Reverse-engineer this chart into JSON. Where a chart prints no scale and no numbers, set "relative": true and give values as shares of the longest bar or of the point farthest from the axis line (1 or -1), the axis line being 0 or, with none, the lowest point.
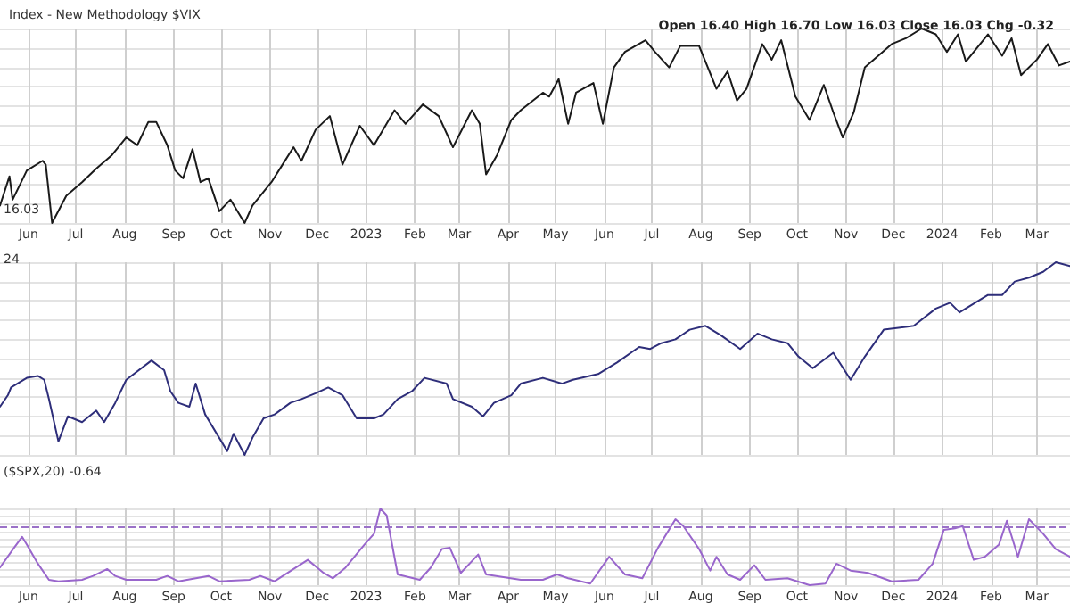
{
  "chart_data": [
    {
      "type": "line",
      "title": "Index - New Methodology $VIX",
      "subtitle": "Open 16.40 High 16.70 Low 16.03 Close 16.03 Chg -0.32",
      "annotations": [
        "16.03"
      ],
      "relative": true,
      "grid": true,
      "tick_labels": "x",
      "xlim": [
        "2022-05-14",
        "2024-03-22"
      ],
      "xticks": [
        {
          "value": "2022-06-01",
          "label": "Jun"
        },
        {
          "value": "2022-07-01",
          "label": "Jul"
        },
        {
          "value": "2022-08-01",
          "label": "Aug"
        },
        {
          "value": "2022-09-01",
          "label": "Sep"
        },
        {
          "value": "2022-10-01",
          "label": "Oct"
        },
        {
          "value": "2022-11-01",
          "label": "Nov"
        },
        {
          "value": "2022-12-01",
          "label": "Dec"
        },
        {
          "value": "2023-01-01",
          "label": "2023"
        },
        {
          "value": "2023-02-01",
          "label": "Feb"
        },
        {
          "value": "2023-03-01",
          "label": "Mar"
        },
        {
          "value": "2023-04-01",
          "label": "Apr"
        },
        {
          "value": "2023-05-01",
          "label": "May"
        },
        {
          "value": "2023-06-01",
          "label": "Jun"
        },
        {
          "value": "2023-07-01",
          "label": "Jul"
        },
        {
          "value": "2023-08-01",
          "label": "Aug"
        },
        {
          "value": "2023-09-01",
          "label": "Sep"
        },
        {
          "value": "2023-10-01",
          "label": "Oct"
        },
        {
          "value": "2023-11-01",
          "label": "Nov"
        },
        {
          "value": "2023-12-01",
          "label": "Dec"
        },
        {
          "value": "2024-01-01",
          "label": "2024"
        },
        {
          "value": "2024-02-01",
          "label": "Feb"
        },
        {
          "value": "2024-03-01",
          "label": "Mar"
        }
      ],
      "x": [
        "2022-05-14",
        "2022-05-20",
        "2022-05-22",
        "2022-05-31",
        "2022-06-10",
        "2022-06-12",
        "2022-06-16",
        "2022-06-25",
        "2022-07-05",
        "2022-07-14",
        "2022-07-24",
        "2022-08-02",
        "2022-08-09",
        "2022-08-16",
        "2022-08-21",
        "2022-08-28",
        "2022-09-02",
        "2022-09-07",
        "2022-09-13",
        "2022-09-18",
        "2022-09-23",
        "2022-09-30",
        "2022-10-07",
        "2022-10-16",
        "2022-10-21",
        "2022-11-02",
        "2022-11-09",
        "2022-11-16",
        "2022-11-21",
        "2022-11-30",
        "2022-12-09",
        "2022-12-17",
        "2022-12-28",
        "2023-01-06",
        "2023-01-19",
        "2023-01-26",
        "2023-02-06",
        "2023-02-16",
        "2023-02-25",
        "2023-03-09",
        "2023-03-14",
        "2023-03-18",
        "2023-03-25",
        "2023-04-03",
        "2023-04-09",
        "2023-04-23",
        "2023-04-27",
        "2023-05-03",
        "2023-05-09",
        "2023-05-14",
        "2023-05-25",
        "2023-05-31",
        "2023-06-07",
        "2023-06-14",
        "2023-06-27",
        "2023-07-03",
        "2023-07-12",
        "2023-07-19",
        "2023-07-31",
        "2023-08-11",
        "2023-08-18",
        "2023-08-24",
        "2023-08-30",
        "2023-09-09",
        "2023-09-15",
        "2023-09-21",
        "2023-09-30",
        "2023-10-09",
        "2023-10-18",
        "2023-10-24",
        "2023-10-30",
        "2023-11-06",
        "2023-11-13",
        "2023-11-30",
        "2023-12-09",
        "2023-12-19",
        "2023-12-28",
        "2024-01-04",
        "2024-01-11",
        "2024-01-16",
        "2024-01-30",
        "2024-02-08",
        "2024-02-14",
        "2024-02-20",
        "2024-03-01",
        "2024-03-08",
        "2024-03-15",
        "2024-03-22"
      ],
      "series": [
        {
          "color": "#1a1a1a",
          "values": [
            0.09,
            0.24,
            0.12,
            0.27,
            0.32,
            0.3,
            0.0,
            0.14,
            0.21,
            0.28,
            0.35,
            0.44,
            0.4,
            0.52,
            0.52,
            0.4,
            0.27,
            0.23,
            0.38,
            0.21,
            0.23,
            0.06,
            0.12,
            0.0,
            0.09,
            0.21,
            0.3,
            0.39,
            0.32,
            0.48,
            0.55,
            0.3,
            0.5,
            0.4,
            0.58,
            0.51,
            0.61,
            0.55,
            0.39,
            0.58,
            0.51,
            0.25,
            0.35,
            0.53,
            0.58,
            0.67,
            0.65,
            0.74,
            0.51,
            0.67,
            0.72,
            0.51,
            0.8,
            0.88,
            0.94,
            0.88,
            0.8,
            0.91,
            0.91,
            0.69,
            0.78,
            0.63,
            0.69,
            0.92,
            0.84,
            0.94,
            0.65,
            0.53,
            0.71,
            0.57,
            0.44,
            0.57,
            0.8,
            0.92,
            0.95,
            1.0,
            0.97,
            0.88,
            0.97,
            0.83,
            0.97,
            0.86,
            0.95,
            0.76,
            0.84,
            0.92,
            0.81,
            0.83
          ]
        }
      ]
    },
    {
      "type": "line",
      "annotations": [
        "24"
      ],
      "relative": true,
      "grid": true,
      "tick_labels": false,
      "xlim": [
        "2022-05-14",
        "2024-03-22"
      ],
      "xticks": [
        {
          "value": "2022-06-01",
          "label": null
        },
        {
          "value": "2022-07-01",
          "label": null
        },
        {
          "value": "2022-08-01",
          "label": null
        },
        {
          "value": "2022-09-01",
          "label": null
        },
        {
          "value": "2022-10-01",
          "label": null
        },
        {
          "value": "2022-11-01",
          "label": null
        },
        {
          "value": "2022-12-01",
          "label": null
        },
        {
          "value": "2023-01-01",
          "label": null
        },
        {
          "value": "2023-02-01",
          "label": null
        },
        {
          "value": "2023-03-01",
          "label": null
        },
        {
          "value": "2023-04-01",
          "label": null
        },
        {
          "value": "2023-05-01",
          "label": null
        },
        {
          "value": "2023-06-01",
          "label": null
        },
        {
          "value": "2023-07-01",
          "label": null
        },
        {
          "value": "2023-08-01",
          "label": null
        },
        {
          "value": "2023-09-01",
          "label": null
        },
        {
          "value": "2023-10-01",
          "label": null
        },
        {
          "value": "2023-11-01",
          "label": null
        },
        {
          "value": "2023-12-01",
          "label": null
        },
        {
          "value": "2024-01-01",
          "label": null
        },
        {
          "value": "2024-02-01",
          "label": null
        },
        {
          "value": "2024-03-01",
          "label": null
        }
      ],
      "x": [
        "2022-05-14",
        "2022-05-19",
        "2022-05-21",
        "2022-05-31",
        "2022-06-07",
        "2022-06-11",
        "2022-06-14",
        "2022-06-20",
        "2022-06-26",
        "2022-07-05",
        "2022-07-14",
        "2022-07-19",
        "2022-07-26",
        "2022-08-02",
        "2022-08-18",
        "2022-08-26",
        "2022-08-30",
        "2022-09-04",
        "2022-09-11",
        "2022-09-15",
        "2022-09-21",
        "2022-10-05",
        "2022-10-09",
        "2022-10-16",
        "2022-10-21",
        "2022-10-28",
        "2022-11-04",
        "2022-11-14",
        "2022-11-21",
        "2022-11-30",
        "2022-12-08",
        "2022-12-17",
        "2022-12-26",
        "2023-01-06",
        "2023-01-12",
        "2023-01-21",
        "2023-01-30",
        "2023-02-07",
        "2023-02-21",
        "2023-02-25",
        "2023-03-09",
        "2023-03-16",
        "2023-03-23",
        "2023-04-03",
        "2023-04-09",
        "2023-04-23",
        "2023-05-05",
        "2023-05-12",
        "2023-05-28",
        "2023-06-09",
        "2023-06-23",
        "2023-06-30",
        "2023-07-07",
        "2023-07-16",
        "2023-07-25",
        "2023-08-04",
        "2023-08-14",
        "2023-08-26",
        "2023-09-06",
        "2023-09-15",
        "2023-09-25",
        "2023-10-02",
        "2023-10-11",
        "2023-10-24",
        "2023-11-04",
        "2023-11-13",
        "2023-11-25",
        "2023-12-14",
        "2023-12-28",
        "2024-01-06",
        "2024-01-12",
        "2024-01-30",
        "2024-02-08",
        "2024-02-16",
        "2024-02-25",
        "2024-03-05",
        "2024-03-13",
        "2024-03-22"
      ],
      "series": [
        {
          "color": "#2e2e7a",
          "values": [
            0.25,
            0.31,
            0.35,
            0.4,
            0.41,
            0.39,
            0.29,
            0.07,
            0.2,
            0.17,
            0.23,
            0.17,
            0.27,
            0.39,
            0.49,
            0.44,
            0.33,
            0.27,
            0.25,
            0.37,
            0.21,
            0.02,
            0.11,
            0.0,
            0.09,
            0.19,
            0.21,
            0.27,
            0.29,
            0.32,
            0.35,
            0.31,
            0.19,
            0.19,
            0.21,
            0.29,
            0.33,
            0.4,
            0.37,
            0.29,
            0.25,
            0.2,
            0.27,
            0.31,
            0.37,
            0.4,
            0.37,
            0.39,
            0.42,
            0.48,
            0.56,
            0.55,
            0.58,
            0.6,
            0.65,
            0.67,
            0.62,
            0.55,
            0.63,
            0.6,
            0.58,
            0.51,
            0.45,
            0.53,
            0.39,
            0.51,
            0.65,
            0.67,
            0.76,
            0.79,
            0.74,
            0.83,
            0.83,
            0.9,
            0.92,
            0.95,
            1.0,
            0.98
          ]
        }
      ]
    },
    {
      "type": "line",
      "annotations": [
        "($SPX,20) -0.64"
      ],
      "relative": true,
      "grid": true,
      "tick_labels": "x",
      "xlim": [
        "2022-05-14",
        "2024-03-22"
      ],
      "xticks": [
        {
          "value": "2022-06-01",
          "label": "Jun"
        },
        {
          "value": "2022-07-01",
          "label": "Jul"
        },
        {
          "value": "2022-08-01",
          "label": "Aug"
        },
        {
          "value": "2022-09-01",
          "label": "Sep"
        },
        {
          "value": "2022-10-01",
          "label": "Oct"
        },
        {
          "value": "2022-11-01",
          "label": "Nov"
        },
        {
          "value": "2022-12-01",
          "label": "Dec"
        },
        {
          "value": "2023-01-01",
          "label": "2023"
        },
        {
          "value": "2023-02-01",
          "label": "Feb"
        },
        {
          "value": "2023-03-01",
          "label": "Mar"
        },
        {
          "value": "2023-04-01",
          "label": "Apr"
        },
        {
          "value": "2023-05-01",
          "label": "May"
        },
        {
          "value": "2023-06-01",
          "label": "Jun"
        },
        {
          "value": "2023-07-01",
          "label": "Jul"
        },
        {
          "value": "2023-08-01",
          "label": "Aug"
        },
        {
          "value": "2023-09-01",
          "label": "Sep"
        },
        {
          "value": "2023-10-01",
          "label": "Oct"
        },
        {
          "value": "2023-11-01",
          "label": "Nov"
        },
        {
          "value": "2023-12-01",
          "label": "Dec"
        },
        {
          "value": "2024-01-01",
          "label": "2024"
        },
        {
          "value": "2024-02-01",
          "label": "Feb"
        },
        {
          "value": "2024-03-01",
          "label": "Mar"
        }
      ],
      "ref_lines": [
        {
          "axis": "y",
          "value": 0.77,
          "color": "#9b72c8",
          "line_style": "dashed"
        }
      ],
      "x": [
        "2022-05-14",
        "2022-05-23",
        "2022-05-28",
        "2022-05-31",
        "2022-06-07",
        "2022-06-14",
        "2022-06-20",
        "2022-07-05",
        "2022-07-12",
        "2022-07-21",
        "2022-07-26",
        "2022-08-02",
        "2022-08-21",
        "2022-08-28",
        "2022-09-04",
        "2022-09-23",
        "2022-09-30",
        "2022-10-19",
        "2022-10-26",
        "2022-11-04",
        "2022-11-16",
        "2022-11-25",
        "2022-12-05",
        "2022-12-11",
        "2022-12-19",
        "2022-12-31",
        "2023-01-06",
        "2023-01-10",
        "2023-01-14",
        "2023-01-21",
        "2023-02-04",
        "2023-02-11",
        "2023-02-18",
        "2023-02-23",
        "2023-03-02",
        "2023-03-13",
        "2023-03-18",
        "2023-04-09",
        "2023-04-23",
        "2023-05-02",
        "2023-05-09",
        "2023-05-23",
        "2023-06-04",
        "2023-06-14",
        "2023-06-25",
        "2023-07-05",
        "2023-07-16",
        "2023-07-21",
        "2023-07-31",
        "2023-08-07",
        "2023-08-11",
        "2023-08-18",
        "2023-08-26",
        "2023-09-04",
        "2023-09-11",
        "2023-09-25",
        "2023-10-09",
        "2023-10-19",
        "2023-10-26",
        "2023-11-04",
        "2023-11-15",
        "2023-11-30",
        "2023-12-17",
        "2023-12-26",
        "2024-01-02",
        "2024-01-09",
        "2024-01-14",
        "2024-01-21",
        "2024-01-28",
        "2024-02-06",
        "2024-02-11",
        "2024-02-18",
        "2024-02-25",
        "2024-03-05",
        "2024-03-13",
        "2024-03-22"
      ],
      "series": [
        {
          "color": "#9966cc",
          "values": [
            0.23,
            0.49,
            0.63,
            0.53,
            0.28,
            0.07,
            0.05,
            0.07,
            0.12,
            0.21,
            0.12,
            0.07,
            0.07,
            0.12,
            0.05,
            0.12,
            0.05,
            0.07,
            0.12,
            0.05,
            0.21,
            0.33,
            0.16,
            0.09,
            0.23,
            0.53,
            0.67,
            1.0,
            0.91,
            0.14,
            0.07,
            0.23,
            0.47,
            0.49,
            0.16,
            0.4,
            0.14,
            0.07,
            0.07,
            0.14,
            0.09,
            0.02,
            0.37,
            0.14,
            0.09,
            0.49,
            0.86,
            0.77,
            0.47,
            0.19,
            0.37,
            0.14,
            0.07,
            0.26,
            0.07,
            0.09,
            0.0,
            0.02,
            0.28,
            0.19,
            0.16,
            0.05,
            0.07,
            0.28,
            0.72,
            0.74,
            0.77,
            0.33,
            0.37,
            0.53,
            0.84,
            0.37,
            0.86,
            0.67,
            0.47,
            0.37
          ]
        }
      ]
    }
  ]
}
